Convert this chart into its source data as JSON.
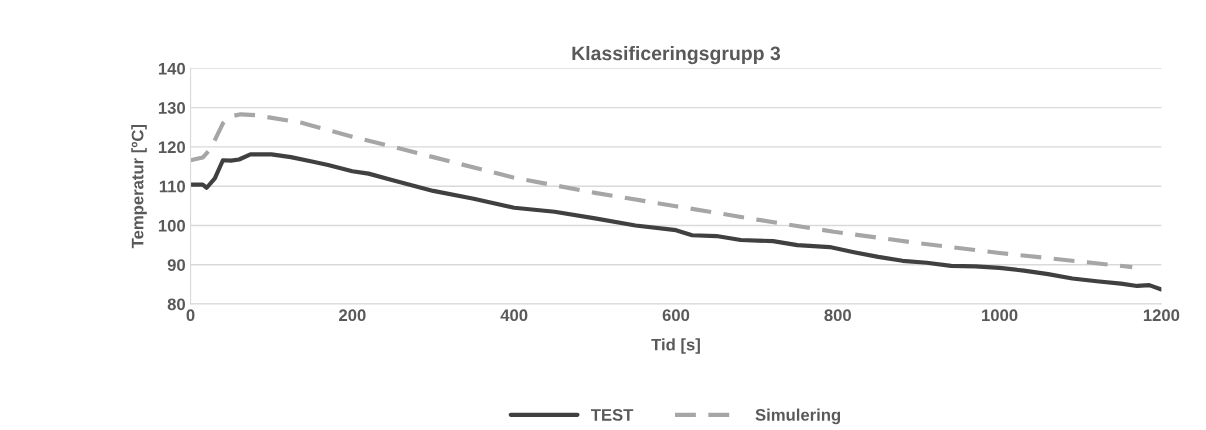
{
  "chart_data": {
    "type": "line",
    "title": "Klassificeringsgrupp 3",
    "xlabel": "Tid [s]",
    "ylabel": "Temperatur [ºC]",
    "xlim": [
      0,
      1200
    ],
    "xticks": [
      0,
      200,
      400,
      600,
      800,
      1000,
      1200
    ],
    "ylim": [
      80,
      140
    ],
    "yticks": [
      80,
      90,
      100,
      110,
      120,
      130,
      140
    ],
    "grid": "y",
    "legend": "bottom",
    "series": [
      {
        "name": "TEST",
        "color": "#404040",
        "line_style": "solid",
        "x": [
          0,
          15,
          20,
          30,
          40,
          50,
          60,
          74,
          100,
          124,
          150,
          170,
          200,
          220,
          250,
          300,
          350,
          400,
          450,
          500,
          550,
          600,
          620,
          650,
          680,
          720,
          750,
          790,
          820,
          850,
          880,
          910,
          940,
          970,
          1000,
          1030,
          1060,
          1090,
          1120,
          1150,
          1170,
          1185,
          1200
        ],
        "values": [
          110.4,
          110.4,
          109.6,
          112,
          116.6,
          116.5,
          116.8,
          118.1,
          118.1,
          117.4,
          116.3,
          115.4,
          113.8,
          113.2,
          111.5,
          108.8,
          106.8,
          104.5,
          103.5,
          101.8,
          100,
          98.8,
          97.5,
          97.3,
          96.3,
          96,
          95,
          94.5,
          93.2,
          92,
          91,
          90.5,
          89.7,
          89.6,
          89.2,
          88.5,
          87.6,
          86.5,
          85.8,
          85.2,
          84.6,
          84.8,
          83.7
        ]
      },
      {
        "name": "Simulering",
        "color": "#a6a6a6",
        "line_style": "dashed",
        "x": [
          0,
          15,
          25,
          40,
          50,
          62,
          80,
          136,
          200,
          247,
          300,
          399,
          500,
          600,
          700,
          795,
          900,
          1000,
          1100,
          1164
        ],
        "values": [
          116.6,
          117.3,
          119.6,
          126,
          127.8,
          128.3,
          128.1,
          126.2,
          122.6,
          120.2,
          117.4,
          112.2,
          108.3,
          104.9,
          101.5,
          98.4,
          95.5,
          93,
          90.8,
          89.4
        ]
      }
    ]
  }
}
